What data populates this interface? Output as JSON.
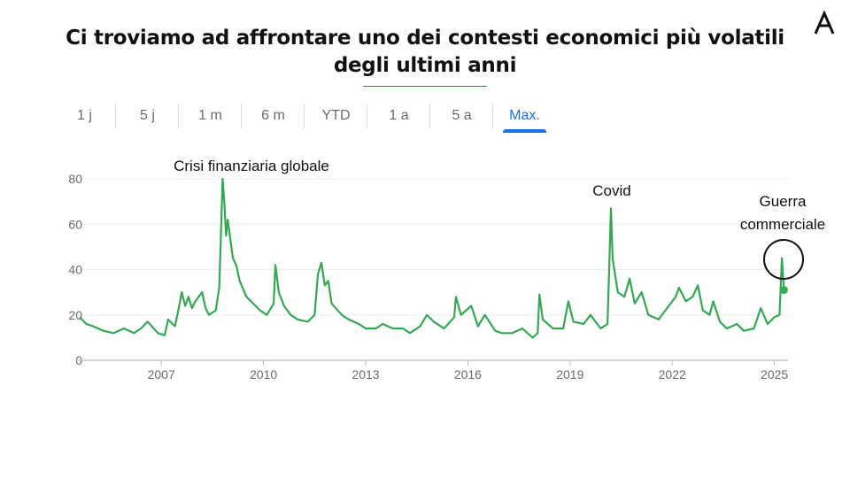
{
  "logo": {
    "name": "A"
  },
  "title": {
    "line1": "Ci troviamo ad affrontare uno dei contesti economici più volatili",
    "line2": "degli ultimi anni"
  },
  "tabs": [
    {
      "label": "1 j",
      "active": false
    },
    {
      "label": "5 j",
      "active": false
    },
    {
      "label": "1 m",
      "active": false
    },
    {
      "label": "6 m",
      "active": false
    },
    {
      "label": "YTD",
      "active": false
    },
    {
      "label": "1 a",
      "active": false
    },
    {
      "label": "5 a",
      "active": false
    },
    {
      "label": "Max.",
      "active": true
    }
  ],
  "colors": {
    "line": "#34a853",
    "accent": "#1a73e8",
    "grid": "#eeeeee",
    "axis": "#bdbdbd"
  },
  "chart_data": {
    "type": "line",
    "xlim": [
      2004.5,
      2025.4
    ],
    "ylim": [
      0,
      80
    ],
    "x_ticks": [
      2007,
      2010,
      2013,
      2016,
      2019,
      2022,
      2025
    ],
    "y_ticks": [
      0,
      20,
      40,
      60,
      80
    ],
    "grid": true,
    "series": [
      {
        "points": [
          [
            2004.6,
            19
          ],
          [
            2004.8,
            16
          ],
          [
            2005.0,
            15
          ],
          [
            2005.3,
            13
          ],
          [
            2005.6,
            12
          ],
          [
            2005.9,
            14
          ],
          [
            2006.2,
            12
          ],
          [
            2006.4,
            14
          ],
          [
            2006.6,
            17
          ],
          [
            2006.9,
            12
          ],
          [
            2007.1,
            11
          ],
          [
            2007.2,
            18
          ],
          [
            2007.4,
            15
          ],
          [
            2007.5,
            22
          ],
          [
            2007.6,
            30
          ],
          [
            2007.7,
            24
          ],
          [
            2007.8,
            28
          ],
          [
            2007.9,
            23
          ],
          [
            2008.0,
            26
          ],
          [
            2008.2,
            30
          ],
          [
            2008.3,
            23
          ],
          [
            2008.4,
            20
          ],
          [
            2008.6,
            22
          ],
          [
            2008.7,
            32
          ],
          [
            2008.75,
            55
          ],
          [
            2008.8,
            80
          ],
          [
            2008.85,
            70
          ],
          [
            2008.9,
            55
          ],
          [
            2008.95,
            62
          ],
          [
            2009.1,
            45
          ],
          [
            2009.2,
            42
          ],
          [
            2009.3,
            35
          ],
          [
            2009.5,
            28
          ],
          [
            2009.7,
            25
          ],
          [
            2009.9,
            22
          ],
          [
            2010.1,
            20
          ],
          [
            2010.3,
            25
          ],
          [
            2010.35,
            42
          ],
          [
            2010.45,
            30
          ],
          [
            2010.6,
            24
          ],
          [
            2010.8,
            20
          ],
          [
            2011.0,
            18
          ],
          [
            2011.3,
            17
          ],
          [
            2011.5,
            20
          ],
          [
            2011.6,
            38
          ],
          [
            2011.7,
            43
          ],
          [
            2011.8,
            33
          ],
          [
            2011.9,
            35
          ],
          [
            2012.0,
            25
          ],
          [
            2012.3,
            20
          ],
          [
            2012.5,
            18
          ],
          [
            2012.8,
            16
          ],
          [
            2013.0,
            14
          ],
          [
            2013.3,
            14
          ],
          [
            2013.5,
            16
          ],
          [
            2013.8,
            14
          ],
          [
            2014.1,
            14
          ],
          [
            2014.3,
            12
          ],
          [
            2014.6,
            15
          ],
          [
            2014.8,
            20
          ],
          [
            2015.0,
            17
          ],
          [
            2015.3,
            14
          ],
          [
            2015.6,
            19
          ],
          [
            2015.65,
            28
          ],
          [
            2015.8,
            20
          ],
          [
            2016.1,
            24
          ],
          [
            2016.3,
            15
          ],
          [
            2016.5,
            20
          ],
          [
            2016.8,
            13
          ],
          [
            2017.0,
            12
          ],
          [
            2017.3,
            12
          ],
          [
            2017.6,
            14
          ],
          [
            2017.9,
            10
          ],
          [
            2018.05,
            12
          ],
          [
            2018.1,
            29
          ],
          [
            2018.2,
            18
          ],
          [
            2018.5,
            14
          ],
          [
            2018.8,
            14
          ],
          [
            2018.95,
            26
          ],
          [
            2019.1,
            17
          ],
          [
            2019.4,
            16
          ],
          [
            2019.6,
            20
          ],
          [
            2019.9,
            14
          ],
          [
            2020.1,
            16
          ],
          [
            2020.15,
            40
          ],
          [
            2020.2,
            67
          ],
          [
            2020.25,
            45
          ],
          [
            2020.4,
            30
          ],
          [
            2020.6,
            28
          ],
          [
            2020.75,
            36
          ],
          [
            2020.9,
            25
          ],
          [
            2021.1,
            30
          ],
          [
            2021.3,
            20
          ],
          [
            2021.6,
            18
          ],
          [
            2021.9,
            24
          ],
          [
            2022.1,
            28
          ],
          [
            2022.2,
            32
          ],
          [
            2022.4,
            26
          ],
          [
            2022.6,
            28
          ],
          [
            2022.75,
            33
          ],
          [
            2022.9,
            22
          ],
          [
            2023.1,
            20
          ],
          [
            2023.2,
            26
          ],
          [
            2023.4,
            17
          ],
          [
            2023.6,
            14
          ],
          [
            2023.9,
            16
          ],
          [
            2024.1,
            13
          ],
          [
            2024.4,
            14
          ],
          [
            2024.6,
            23
          ],
          [
            2024.8,
            16
          ],
          [
            2025.0,
            19
          ],
          [
            2025.15,
            20
          ],
          [
            2025.22,
            45
          ],
          [
            2025.28,
            31
          ]
        ]
      }
    ],
    "annotations": [
      {
        "text": "Crisi finanziaria globale",
        "x": 2008.8,
        "y": 80
      },
      {
        "text": "Covid",
        "x": 2020.2,
        "y": 67
      },
      {
        "text": "Guerra commerciale",
        "x": 2025.22,
        "y": 45
      }
    ]
  }
}
